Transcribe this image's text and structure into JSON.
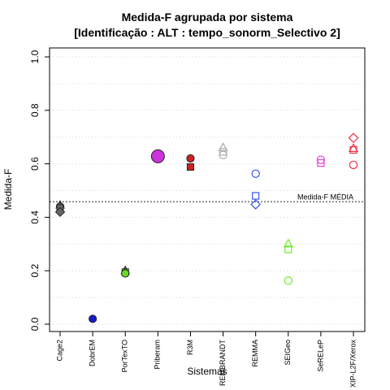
{
  "chart_data": {
    "type": "scatter",
    "title": "Medida-F agrupada por sistema",
    "subtitle": "[Identificação : ALT : tempo_sonorm_Selectivo 2]",
    "xlabel": "Sistemas",
    "ylabel": "Medida-F",
    "ylim": [
      0,
      1
    ],
    "yticks": [
      "0.0",
      "0.2",
      "0.4",
      "0.6",
      "0.8",
      "1.0"
    ],
    "grid": "horizontal dotted",
    "categories": [
      "Cage2",
      "DobrEM",
      "PorTexTO",
      "Priberam",
      "R3M",
      "REMBRANDT",
      "REMMA",
      "SEIGeo",
      "SeRELeP",
      "XIP-L2F/Xerox"
    ],
    "reference_line": {
      "label": "Medida-F MÉDIA",
      "value": 0.458
    },
    "series": [
      {
        "category": "Cage2",
        "color": "#666666",
        "filled": true,
        "points": [
          {
            "shape": "triangle",
            "value": 0.445
          },
          {
            "shape": "circle",
            "value": 0.44
          },
          {
            "shape": "square",
            "value": 0.435
          },
          {
            "shape": "diamond",
            "value": 0.42
          }
        ]
      },
      {
        "category": "DobrEM",
        "color": "#1a1acc",
        "filled": true,
        "points": [
          {
            "shape": "circle",
            "value": 0.02
          }
        ]
      },
      {
        "category": "PorTexTO",
        "color": "#66dd22",
        "filled": true,
        "points": [
          {
            "shape": "triangle",
            "value": 0.2
          },
          {
            "shape": "square",
            "value": 0.195
          },
          {
            "shape": "circle",
            "value": 0.19
          }
        ]
      },
      {
        "category": "Priberam",
        "color": "#cc33dd",
        "filled": true,
        "points": [
          {
            "shape": "circle-large",
            "value": 0.628
          }
        ]
      },
      {
        "category": "R3M",
        "color": "#cc2222",
        "filled": true,
        "points": [
          {
            "shape": "circle",
            "value": 0.62
          },
          {
            "shape": "square",
            "value": 0.588
          }
        ]
      },
      {
        "category": "REMBRANDT",
        "color": "#aaaaaa",
        "filled": false,
        "points": [
          {
            "shape": "triangle",
            "value": 0.66
          },
          {
            "shape": "square",
            "value": 0.645
          },
          {
            "shape": "circle",
            "value": 0.633
          }
        ]
      },
      {
        "category": "REMMA",
        "color": "#3355ee",
        "filled": false,
        "points": [
          {
            "shape": "circle",
            "value": 0.563
          },
          {
            "shape": "square",
            "value": 0.48
          },
          {
            "shape": "diamond",
            "value": 0.448
          }
        ]
      },
      {
        "category": "SEIGeo",
        "color": "#66ee22",
        "filled": false,
        "points": [
          {
            "shape": "triangle",
            "value": 0.3
          },
          {
            "shape": "square",
            "value": 0.28
          },
          {
            "shape": "circle",
            "value": 0.163
          }
        ]
      },
      {
        "category": "SeRELeP",
        "color": "#dd44dd",
        "filled": false,
        "points": [
          {
            "shape": "circle",
            "value": 0.615
          },
          {
            "shape": "square",
            "value": 0.603
          }
        ]
      },
      {
        "category": "XIP-L2F/Xerox",
        "color": "#ee3344",
        "filled": false,
        "points": [
          {
            "shape": "diamond",
            "value": 0.697
          },
          {
            "shape": "triangle",
            "value": 0.657
          },
          {
            "shape": "square",
            "value": 0.652
          },
          {
            "shape": "circle",
            "value": 0.596
          }
        ]
      }
    ]
  }
}
